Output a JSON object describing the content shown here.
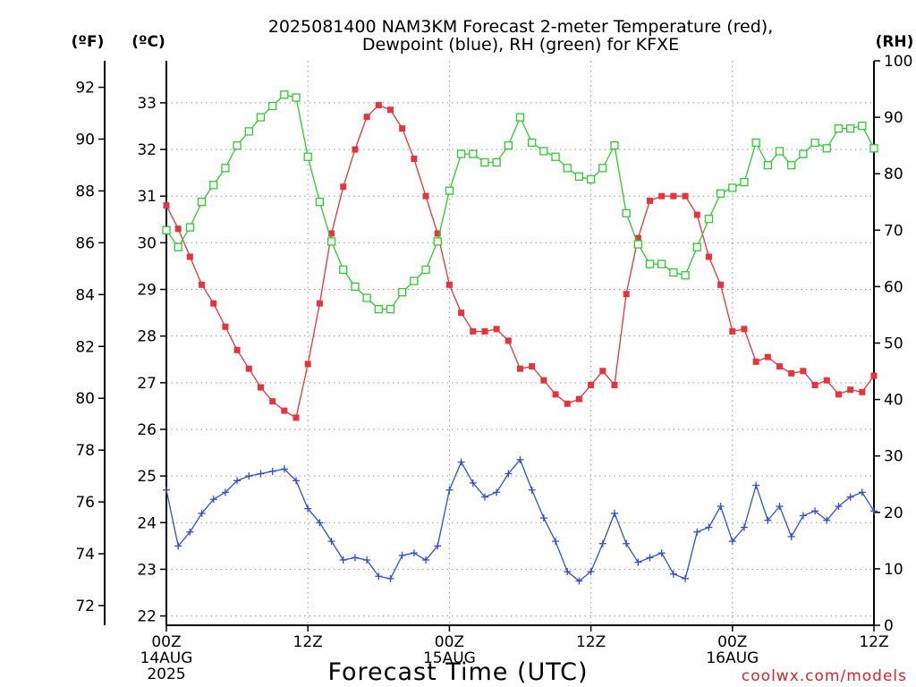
{
  "chart_data": {
    "type": "line",
    "title_line1": "2025081400 NAM3KM Forecast 2-meter Temperature (red),",
    "title_line2": "Dewpoint (blue), RH (green) for KFXE",
    "xlabel": "Forecast Time (UTC)",
    "credit": "coolwx.com/models",
    "unit_labels": {
      "fahrenheit": "(ºF)",
      "celsius": "(ºC)",
      "rh": "(RH)"
    },
    "x_axis": {
      "range_hours": [
        0,
        60
      ],
      "ticks": [
        {
          "hour": 0,
          "label": "00Z",
          "sub1": "14AUG",
          "sub2": "2025"
        },
        {
          "hour": 12,
          "label": "12Z",
          "sub1": "",
          "sub2": ""
        },
        {
          "hour": 24,
          "label": "00Z",
          "sub1": "15AUG",
          "sub2": ""
        },
        {
          "hour": 36,
          "label": "12Z",
          "sub1": "",
          "sub2": ""
        },
        {
          "hour": 48,
          "label": "00Z",
          "sub1": "16AUG",
          "sub2": ""
        },
        {
          "hour": 60,
          "label": "12Z",
          "sub1": "",
          "sub2": ""
        }
      ]
    },
    "celsius_axis": {
      "range": [
        21.8,
        33.9
      ],
      "ticks": [
        "22",
        "23",
        "24",
        "25",
        "26",
        "27",
        "28",
        "29",
        "30",
        "31",
        "32",
        "33"
      ]
    },
    "fahrenheit_axis": {
      "range": [
        71.24,
        93.02
      ],
      "ticks": [
        "72",
        "74",
        "76",
        "78",
        "80",
        "82",
        "84",
        "86",
        "88",
        "90",
        "92"
      ]
    },
    "rh_axis": {
      "range": [
        0,
        100
      ],
      "ticks": [
        "0",
        "10",
        "20",
        "30",
        "40",
        "50",
        "60",
        "70",
        "80",
        "90",
        "100"
      ]
    },
    "grid": true,
    "series": [
      {
        "name": "Temperature (red)",
        "axis": "celsius",
        "color": "#e8333a",
        "marker": "filled-square",
        "x": [
          0,
          1,
          2,
          3,
          4,
          5,
          6,
          7,
          8,
          9,
          10,
          11,
          12,
          13,
          14,
          15,
          16,
          17,
          18,
          19,
          20,
          21,
          22,
          23,
          24,
          25,
          26,
          27,
          28,
          29,
          30,
          31,
          32,
          33,
          34,
          35,
          36,
          37,
          38,
          39,
          40,
          41,
          42,
          43,
          44,
          45,
          46,
          47,
          48,
          49,
          50,
          51,
          52,
          53,
          54,
          55,
          56,
          57,
          58,
          59,
          60
        ],
        "values": [
          30.8,
          30.3,
          29.7,
          29.1,
          28.7,
          28.2,
          27.7,
          27.3,
          26.9,
          26.6,
          26.4,
          26.25,
          27.4,
          28.7,
          30.2,
          31.2,
          32.0,
          32.7,
          32.95,
          32.85,
          32.45,
          31.8,
          31.0,
          30.2,
          29.1,
          28.5,
          28.1,
          28.1,
          28.15,
          27.9,
          27.3,
          27.35,
          27.05,
          26.75,
          26.55,
          26.65,
          26.95,
          27.25,
          26.95,
          28.9,
          30.1,
          30.9,
          31.0,
          31.0,
          31.0,
          30.6,
          29.7,
          29.1,
          28.1,
          28.15,
          27.45,
          27.55,
          27.35,
          27.2,
          27.25,
          26.95,
          27.05,
          26.75,
          26.85,
          26.8,
          27.15
        ]
      },
      {
        "name": "Dewpoint (blue)",
        "axis": "celsius",
        "color": "#2e4fd8",
        "marker": "plus",
        "x": [
          0,
          1,
          2,
          3,
          4,
          5,
          6,
          7,
          8,
          9,
          10,
          11,
          12,
          13,
          14,
          15,
          16,
          17,
          18,
          19,
          20,
          21,
          22,
          23,
          24,
          25,
          26,
          27,
          28,
          29,
          30,
          31,
          32,
          33,
          34,
          35,
          36,
          37,
          38,
          39,
          40,
          41,
          42,
          43,
          44,
          45,
          46,
          47,
          48,
          49,
          50,
          51,
          52,
          53,
          54,
          55,
          56,
          57,
          58,
          59,
          60
        ],
        "values": [
          24.7,
          23.5,
          23.8,
          24.2,
          24.5,
          24.65,
          24.9,
          25.0,
          25.05,
          25.1,
          25.15,
          24.9,
          24.3,
          24.0,
          23.6,
          23.2,
          23.25,
          23.2,
          22.85,
          22.8,
          23.3,
          23.35,
          23.2,
          23.5,
          24.7,
          25.3,
          24.85,
          24.55,
          24.65,
          25.05,
          25.35,
          24.7,
          24.1,
          23.6,
          22.95,
          22.75,
          22.95,
          23.55,
          24.2,
          23.55,
          23.15,
          23.25,
          23.35,
          22.9,
          22.8,
          23.8,
          23.9,
          24.35,
          23.6,
          23.9,
          24.8,
          24.05,
          24.35,
          23.7,
          24.15,
          24.25,
          24.05,
          24.35,
          24.55,
          24.65,
          24.25
        ]
      },
      {
        "name": "RH (green)",
        "axis": "rh",
        "color": "#2ccc2c",
        "marker": "open-square",
        "x": [
          0,
          1,
          2,
          3,
          4,
          5,
          6,
          7,
          8,
          9,
          10,
          11,
          12,
          13,
          14,
          15,
          16,
          17,
          18,
          19,
          20,
          21,
          22,
          23,
          24,
          25,
          26,
          27,
          28,
          29,
          30,
          31,
          32,
          33,
          34,
          35,
          36,
          37,
          38,
          39,
          40,
          41,
          42,
          43,
          44,
          45,
          46,
          47,
          48,
          49,
          50,
          51,
          52,
          53,
          54,
          55,
          56,
          57,
          58,
          59,
          60
        ],
        "values": [
          70.0,
          67.0,
          70.5,
          75.0,
          78.0,
          81.0,
          85.0,
          87.5,
          90.0,
          92.0,
          94.0,
          93.5,
          83.0,
          75.0,
          68.0,
          63.0,
          60.0,
          58.0,
          56.0,
          56.0,
          59.0,
          61.0,
          63.0,
          68.0,
          77.0,
          83.5,
          83.5,
          82.0,
          82.0,
          85.0,
          90.0,
          85.5,
          84.0,
          83.0,
          81.0,
          79.5,
          79.0,
          81.0,
          85.0,
          73.0,
          67.5,
          64.0,
          64.0,
          62.5,
          62.0,
          67.0,
          72.0,
          76.5,
          77.5,
          78.5,
          85.5,
          81.5,
          84.0,
          81.5,
          83.5,
          85.5,
          84.5,
          88.0,
          88.0,
          88.5,
          84.5
        ]
      }
    ]
  }
}
